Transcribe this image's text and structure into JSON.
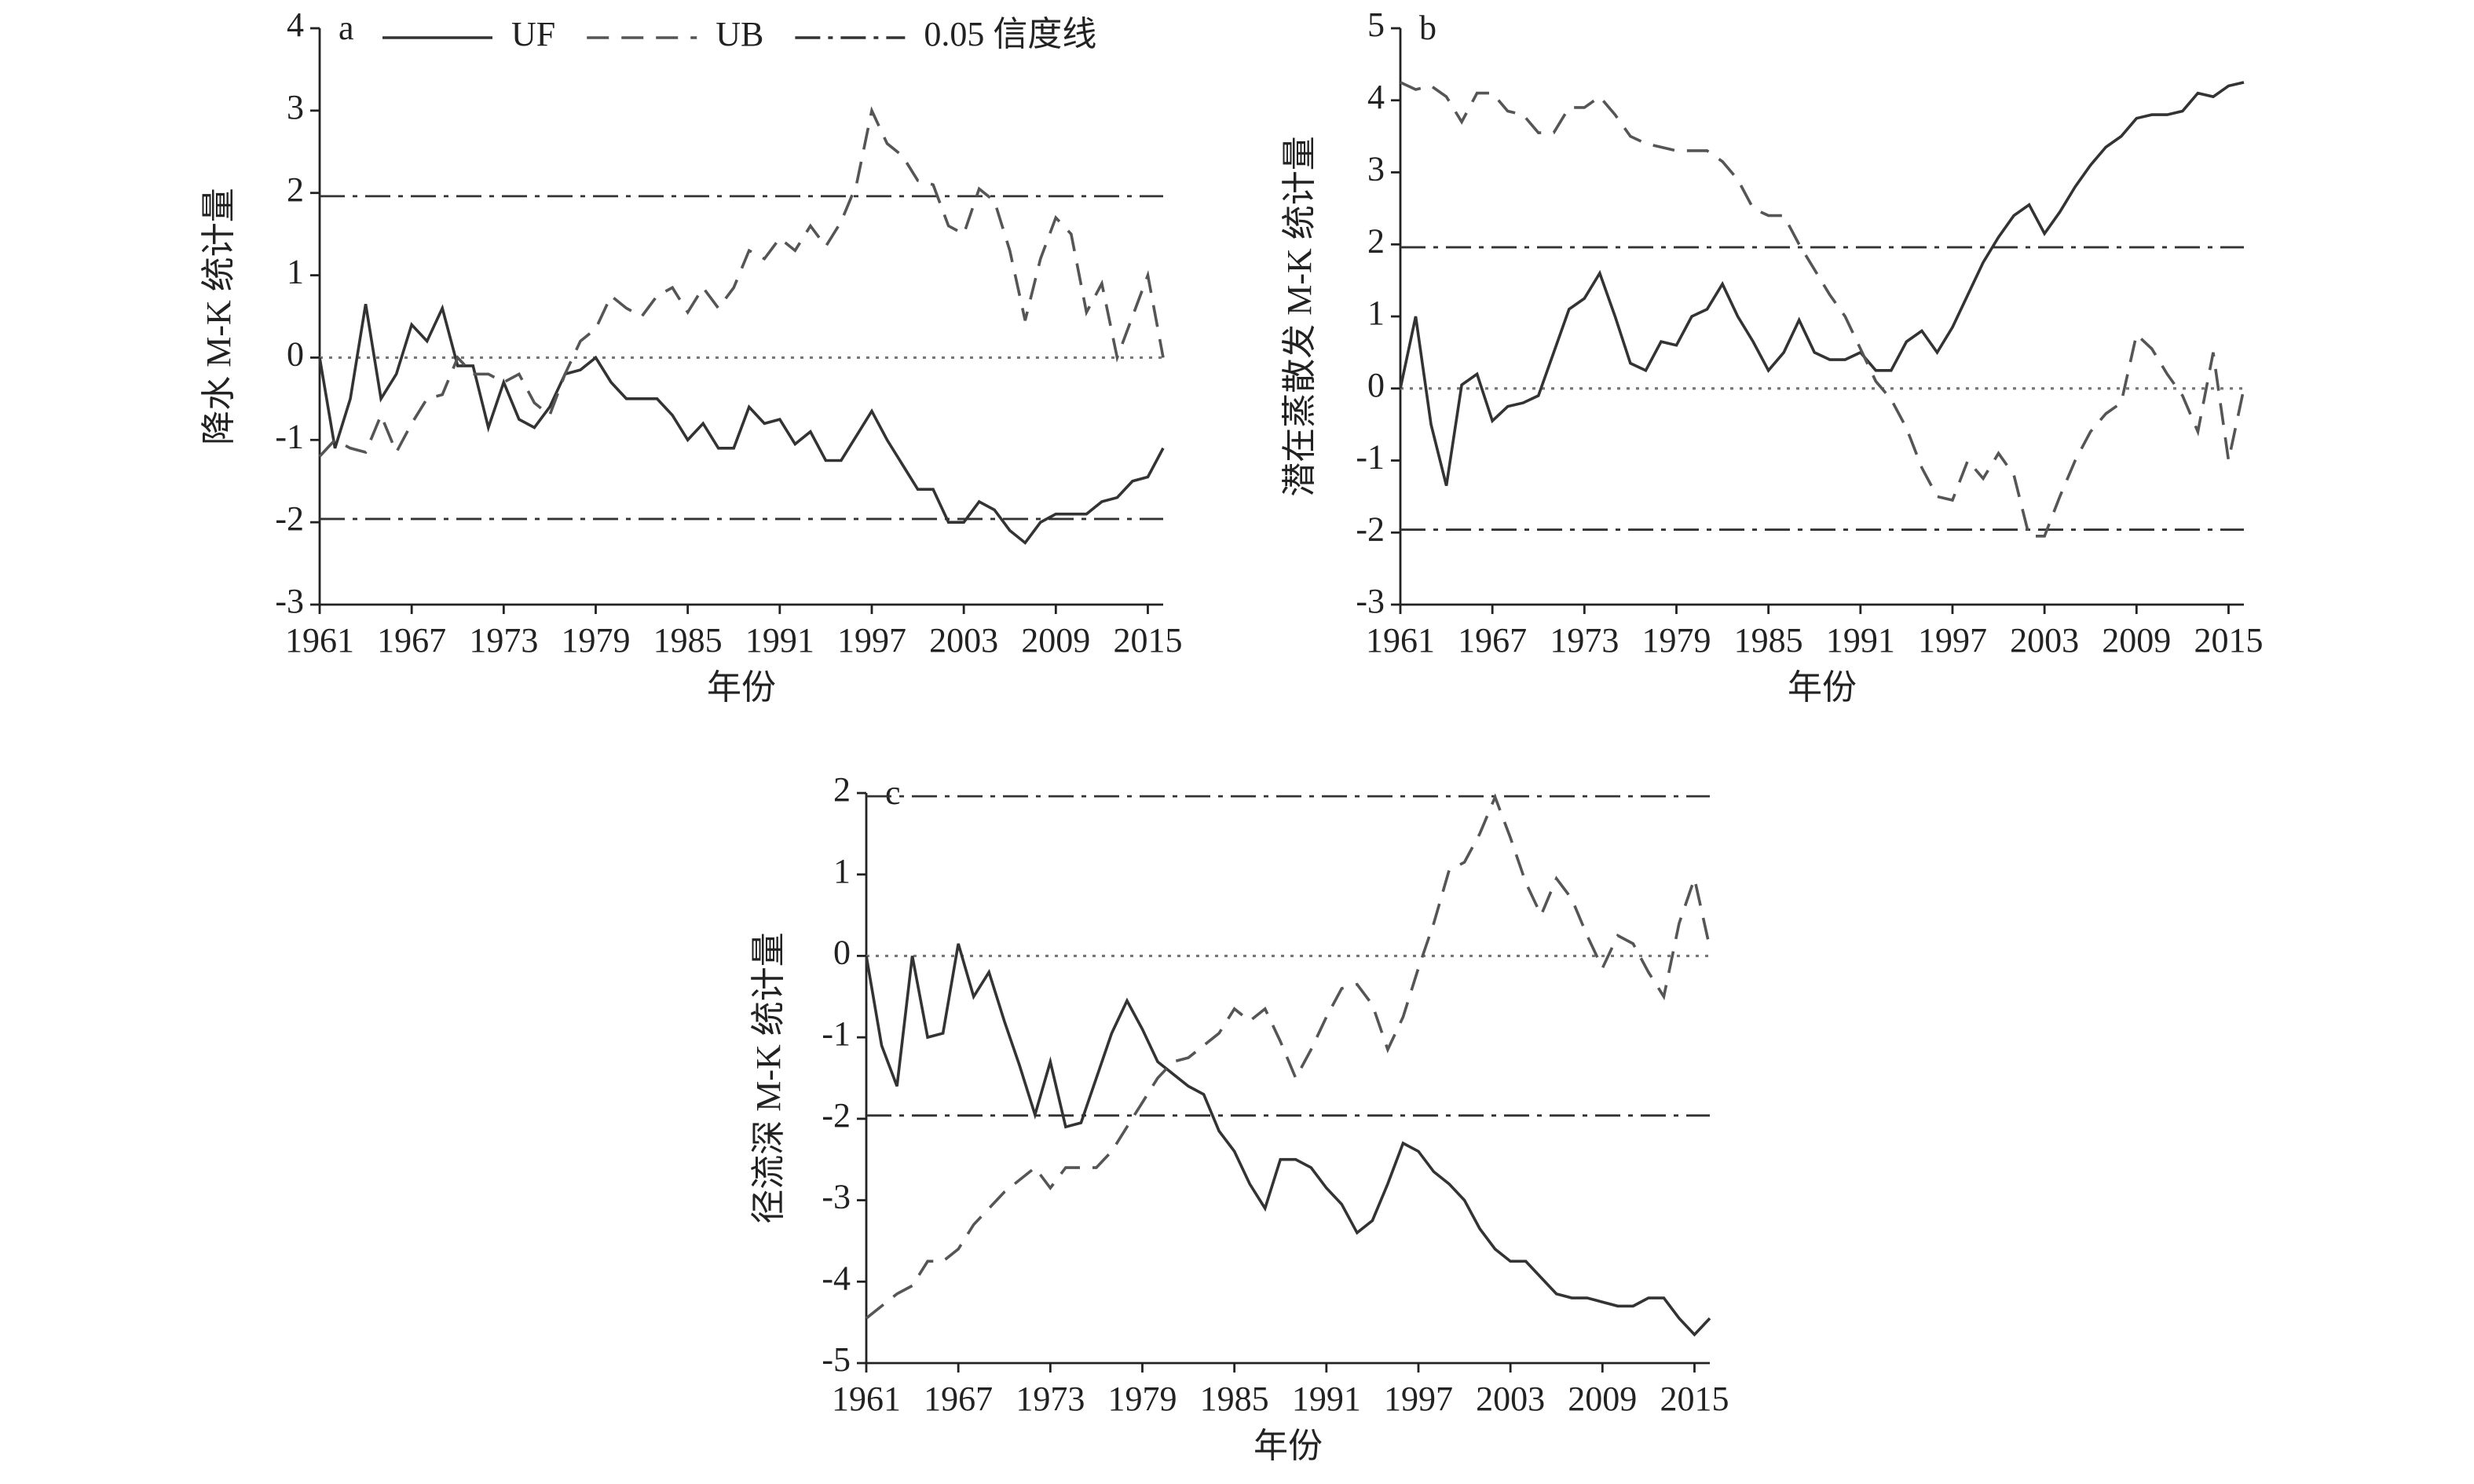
{
  "chart_data": [
    {
      "type": "line",
      "panel_label": "a",
      "xlabel": "年份",
      "ylabel": "降水 M-K 统计量",
      "legend": true,
      "x": [
        1961,
        1962,
        1963,
        1964,
        1965,
        1966,
        1967,
        1968,
        1969,
        1970,
        1971,
        1972,
        1973,
        1974,
        1975,
        1976,
        1977,
        1978,
        1979,
        1980,
        1981,
        1982,
        1983,
        1984,
        1985,
        1986,
        1987,
        1988,
        1989,
        1990,
        1991,
        1992,
        1993,
        1994,
        1995,
        1996,
        1997,
        1998,
        1999,
        2000,
        2001,
        2002,
        2003,
        2004,
        2005,
        2006,
        2007,
        2008,
        2009,
        2010,
        2011,
        2012,
        2013,
        2014,
        2015,
        2016
      ],
      "series": [
        {
          "name": "UF",
          "color": "#333333",
          "dash": "solid",
          "values": [
            0,
            -1.1,
            -0.5,
            0.65,
            -0.5,
            -0.2,
            0.4,
            0.2,
            0.6,
            -0.1,
            -0.1,
            -0.85,
            -0.3,
            -0.75,
            -0.85,
            -0.6,
            -0.2,
            -0.15,
            0.0,
            -0.3,
            -0.5,
            -0.5,
            -0.5,
            -0.7,
            -1.0,
            -0.8,
            -1.1,
            -1.1,
            -0.6,
            -0.8,
            -0.75,
            -1.05,
            -0.9,
            -1.25,
            -1.25,
            -0.95,
            -0.65,
            -1.0,
            -1.3,
            -1.6,
            -1.6,
            -2.0,
            -2.0,
            -1.75,
            -1.85,
            -2.1,
            -2.25,
            -2.0,
            -1.9,
            -1.9,
            -1.9,
            -1.75,
            -1.7,
            -1.5,
            -1.45,
            -1.1
          ]
        },
        {
          "name": "UB",
          "color": "#555555",
          "dash": "dashed",
          "values": [
            -1.2,
            -1.0,
            -1.1,
            -1.15,
            -0.7,
            -1.15,
            -0.8,
            -0.5,
            -0.45,
            0.0,
            -0.2,
            -0.2,
            -0.3,
            -0.2,
            -0.55,
            -0.7,
            -0.2,
            0.2,
            0.35,
            0.75,
            0.6,
            0.5,
            0.75,
            0.85,
            0.55,
            0.85,
            0.6,
            0.85,
            1.3,
            1.2,
            1.45,
            1.3,
            1.6,
            1.35,
            1.65,
            2.1,
            3.0,
            2.6,
            2.45,
            2.15,
            2.1,
            1.6,
            1.5,
            2.05,
            1.9,
            1.3,
            0.45,
            1.2,
            1.7,
            1.5,
            0.55,
            0.9,
            0.0,
            0.5,
            1.0,
            0.0
          ]
        }
      ],
      "reference_lines": [
        {
          "value": 1.96,
          "style": "dashdot",
          "name": "0.05 信度线"
        },
        {
          "value": -1.96,
          "style": "dashdot"
        },
        {
          "value": 0,
          "style": "dotted"
        }
      ],
      "xlim": [
        1961,
        2016
      ],
      "xticks": [
        1961,
        1967,
        1973,
        1979,
        1985,
        1991,
        1997,
        2003,
        2009,
        2015
      ],
      "ylim": [
        -3,
        4
      ],
      "yticks": [
        -3,
        -2,
        -1,
        0,
        1,
        2,
        3,
        4
      ]
    },
    {
      "type": "line",
      "panel_label": "b",
      "xlabel": "年份",
      "ylabel": "潜在蒸散发 M-K 统计量",
      "legend": false,
      "x": [
        1961,
        1962,
        1963,
        1964,
        1965,
        1966,
        1967,
        1968,
        1969,
        1970,
        1971,
        1972,
        1973,
        1974,
        1975,
        1976,
        1977,
        1978,
        1979,
        1980,
        1981,
        1982,
        1983,
        1984,
        1985,
        1986,
        1987,
        1988,
        1989,
        1990,
        1991,
        1992,
        1993,
        1994,
        1995,
        1996,
        1997,
        1998,
        1999,
        2000,
        2001,
        2002,
        2003,
        2004,
        2005,
        2006,
        2007,
        2008,
        2009,
        2010,
        2011,
        2012,
        2013,
        2014,
        2015,
        2016
      ],
      "series": [
        {
          "color": "#333333",
          "dash": "solid",
          "values": [
            0,
            1.0,
            -0.5,
            -1.35,
            0.05,
            0.2,
            -0.45,
            -0.25,
            -0.2,
            -0.1,
            0.5,
            1.1,
            1.25,
            1.6,
            1.0,
            0.35,
            0.25,
            0.65,
            0.6,
            1.0,
            1.1,
            1.45,
            1.0,
            0.65,
            0.25,
            0.5,
            0.95,
            0.5,
            0.4,
            0.4,
            0.5,
            0.25,
            0.25,
            0.65,
            0.8,
            0.5,
            0.85,
            1.3,
            1.75,
            2.1,
            2.4,
            2.55,
            2.15,
            2.45,
            2.8,
            3.1,
            3.35,
            3.5,
            3.75,
            3.8,
            3.8,
            3.85,
            4.1,
            4.05,
            4.2,
            4.25
          ]
        },
        {
          "color": "#555555",
          "dash": "dashed",
          "values": [
            4.25,
            4.15,
            4.2,
            4.05,
            3.7,
            4.1,
            4.1,
            3.85,
            3.8,
            3.55,
            3.55,
            3.9,
            3.9,
            4.05,
            3.8,
            3.5,
            3.4,
            3.35,
            3.3,
            3.3,
            3.3,
            3.15,
            2.9,
            2.5,
            2.4,
            2.4,
            2.0,
            1.65,
            1.3,
            1.0,
            0.55,
            0.1,
            -0.15,
            -0.55,
            -1.1,
            -1.5,
            -1.55,
            -1.0,
            -1.25,
            -0.9,
            -1.2,
            -2.05,
            -2.05,
            -1.5,
            -1.0,
            -0.6,
            -0.35,
            -0.2,
            0.75,
            0.55,
            0.2,
            -0.1,
            -0.6,
            0.5,
            -1.0,
            0.0
          ]
        }
      ],
      "reference_lines": [
        {
          "value": 1.96,
          "style": "dashdot"
        },
        {
          "value": -1.96,
          "style": "dashdot"
        },
        {
          "value": 0,
          "style": "dotted"
        }
      ],
      "xlim": [
        1961,
        2016
      ],
      "xticks": [
        1961,
        1967,
        1973,
        1979,
        1985,
        1991,
        1997,
        2003,
        2009,
        2015
      ],
      "ylim": [
        -3,
        5
      ],
      "yticks": [
        -3,
        -2,
        -1,
        0,
        1,
        2,
        3,
        4,
        5
      ]
    },
    {
      "type": "line",
      "panel_label": "c",
      "xlabel": "年份",
      "ylabel": "径流深 M-K 统计量",
      "legend": false,
      "x": [
        1961,
        1962,
        1963,
        1964,
        1965,
        1966,
        1967,
        1968,
        1969,
        1970,
        1971,
        1972,
        1973,
        1974,
        1975,
        1976,
        1977,
        1978,
        1979,
        1980,
        1981,
        1982,
        1983,
        1984,
        1985,
        1986,
        1987,
        1988,
        1989,
        1990,
        1991,
        1992,
        1993,
        1994,
        1995,
        1996,
        1997,
        1998,
        1999,
        2000,
        2001,
        2002,
        2003,
        2004,
        2005,
        2006,
        2007,
        2008,
        2009,
        2010,
        2011,
        2012,
        2013,
        2014,
        2015,
        2016
      ],
      "series": [
        {
          "color": "#333333",
          "dash": "solid",
          "values": [
            0,
            -1.1,
            -1.6,
            0.0,
            -1.0,
            -0.95,
            0.15,
            -0.5,
            -0.2,
            -0.8,
            -1.35,
            -1.95,
            -1.3,
            -2.1,
            -2.05,
            -1.5,
            -0.95,
            -0.55,
            -0.9,
            -1.3,
            -1.45,
            -1.6,
            -1.7,
            -2.15,
            -2.4,
            -2.8,
            -3.1,
            -2.5,
            -2.5,
            -2.6,
            -2.85,
            -3.05,
            -3.4,
            -3.25,
            -2.8,
            -2.3,
            -2.4,
            -2.65,
            -2.8,
            -3.0,
            -3.35,
            -3.6,
            -3.75,
            -3.75,
            -3.95,
            -4.15,
            -4.2,
            -4.2,
            -4.25,
            -4.3,
            -4.3,
            -4.2,
            -4.2,
            -4.45,
            -4.65,
            -4.45
          ]
        },
        {
          "color": "#555555",
          "dash": "dashed",
          "values": [
            -4.45,
            -4.3,
            -4.15,
            -4.05,
            -3.75,
            -3.75,
            -3.6,
            -3.3,
            -3.1,
            -2.9,
            -2.75,
            -2.6,
            -2.85,
            -2.6,
            -2.6,
            -2.6,
            -2.4,
            -2.1,
            -1.8,
            -1.5,
            -1.3,
            -1.25,
            -1.1,
            -0.95,
            -0.65,
            -0.8,
            -0.65,
            -1.05,
            -1.5,
            -1.15,
            -0.75,
            -0.4,
            -0.35,
            -0.6,
            -1.15,
            -0.75,
            -0.15,
            0.4,
            1.05,
            1.15,
            1.5,
            1.95,
            1.45,
            0.9,
            0.5,
            0.95,
            0.7,
            0.25,
            -0.15,
            0.25,
            0.15,
            -0.2,
            -0.5,
            0.4,
            0.95,
            0.1
          ]
        }
      ],
      "reference_lines": [
        {
          "value": 1.96,
          "style": "dashdot"
        },
        {
          "value": -1.96,
          "style": "dashdot"
        },
        {
          "value": 0,
          "style": "dotted"
        }
      ],
      "xlim": [
        1961,
        2016
      ],
      "xticks": [
        1961,
        1967,
        1973,
        1979,
        1985,
        1991,
        1997,
        2003,
        2009,
        2015
      ],
      "ylim": [
        -5,
        2
      ],
      "yticks": [
        -5,
        -4,
        -3,
        -2,
        -1,
        0,
        1,
        2
      ]
    }
  ]
}
